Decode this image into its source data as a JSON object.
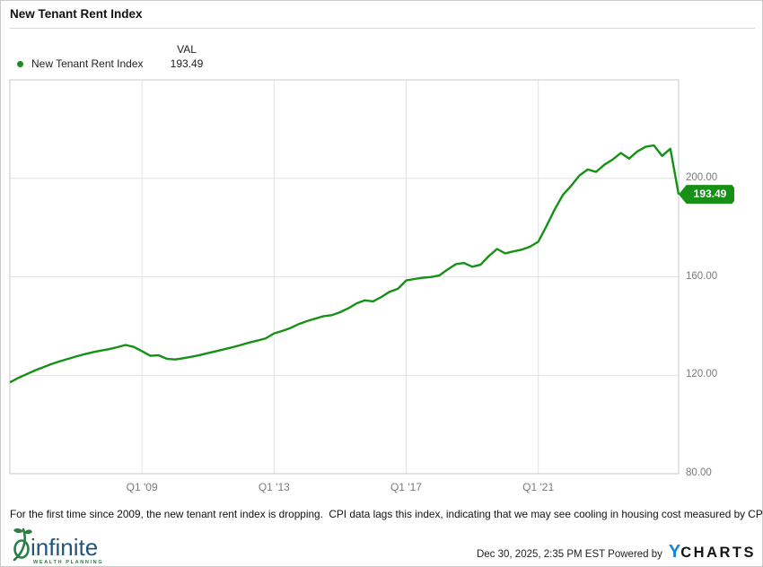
{
  "header": {
    "title": "New Tenant Rent Index"
  },
  "legend": {
    "val_header": "VAL",
    "series": {
      "label": "New Tenant Rent Index",
      "value": "193.49",
      "dot_color": "#169115"
    }
  },
  "chart_data": {
    "type": "line",
    "title": "New Tenant Rent Index",
    "x_frequency": "quarterly",
    "x_range": [
      "2005 Q1",
      "2025 Q2"
    ],
    "x_ticks": [
      {
        "index": 16,
        "label": "Q1 '09"
      },
      {
        "index": 32,
        "label": "Q1 '13"
      },
      {
        "index": 48,
        "label": "Q1 '17"
      },
      {
        "index": 64,
        "label": "Q1 '21"
      }
    ],
    "ylim": [
      80,
      240
    ],
    "y_ticks": [
      {
        "value": 200,
        "label": "200.00"
      },
      {
        "value": 160,
        "label": "160.00"
      },
      {
        "value": 120,
        "label": "120.00"
      },
      {
        "value": 80,
        "label": "80.00"
      }
    ],
    "grid": true,
    "legend_position": "top-left",
    "value_axis_side": "right",
    "series": [
      {
        "name": "New Tenant Rent Index",
        "color": "#169115",
        "values": [
          117.1,
          118.9,
          120.4,
          121.9,
          123.2,
          124.5,
          125.6,
          126.6,
          127.6,
          128.5,
          129.3,
          130.0,
          130.6,
          131.4,
          132.3,
          131.5,
          129.8,
          127.9,
          128.1,
          126.7,
          126.4,
          126.9,
          127.5,
          128.2,
          129.0,
          129.8,
          130.6,
          131.4,
          132.3,
          133.3,
          134.1,
          135.0,
          137.0,
          138.0,
          139.2,
          140.8,
          142.0,
          143.0,
          144.0,
          144.4,
          145.6,
          147.2,
          149.2,
          150.4,
          150.0,
          151.8,
          153.9,
          155.1,
          158.5,
          159.1,
          159.6,
          159.9,
          160.5,
          162.9,
          165.1,
          165.6,
          164.1,
          164.9,
          168.4,
          171.3,
          169.5,
          170.3,
          171.0,
          172.2,
          174.2,
          180.6,
          187.4,
          193.3,
          197.0,
          201.2,
          203.6,
          202.6,
          205.5,
          207.6,
          210.3,
          208.0,
          210.9,
          212.8,
          213.4,
          209.1,
          212.0,
          193.49
        ]
      }
    ],
    "last_value_label": "193.49"
  },
  "annotation": "For the first time since 2009, the new tenant rent index is dropping.  CPI data lags this index, indicating that we may see cooling in housing cost measured by CPI",
  "footer": {
    "logo": {
      "name": "infinite",
      "subtitle": "WEALTH PLANNING"
    },
    "timestamp": "Dec 30, 2025, 2:35 PM EST",
    "powered_by": "Powered by",
    "brand": {
      "y": "Y",
      "charts": "CHARTS"
    }
  },
  "colors": {
    "line_green": "#169115",
    "badge_green": "#169115",
    "grid_gray": "#e2e2e2",
    "border_gray": "#c9c9c9",
    "ycharts_blue": "#1586d0",
    "logo_navy": "#20567a",
    "logo_green": "#2e7d46"
  }
}
